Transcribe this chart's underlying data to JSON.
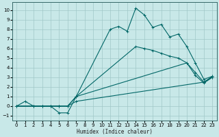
{
  "xlabel": "Humidex (Indice chaleur)",
  "xlim": [
    -0.5,
    23.5
  ],
  "ylim": [
    -1.5,
    10.8
  ],
  "xticks": [
    0,
    1,
    2,
    3,
    4,
    5,
    6,
    7,
    8,
    9,
    10,
    11,
    12,
    13,
    14,
    15,
    16,
    17,
    18,
    19,
    20,
    21,
    22,
    23
  ],
  "yticks": [
    -1,
    0,
    1,
    2,
    3,
    4,
    5,
    6,
    7,
    8,
    9,
    10
  ],
  "background_color": "#c8e8e8",
  "grid_color": "#a0c8c8",
  "line_color": "#006666",
  "line1_x": [
    0,
    1,
    2,
    3,
    4,
    5,
    6,
    7,
    11,
    12,
    13,
    14,
    15,
    16,
    17,
    18,
    19,
    20,
    21,
    22,
    23
  ],
  "line1_y": [
    0,
    0.5,
    0,
    0,
    0,
    -0.7,
    -0.7,
    1.0,
    8.0,
    8.3,
    7.8,
    10.2,
    9.5,
    8.2,
    8.5,
    7.2,
    7.5,
    6.2,
    4.5,
    2.8,
    3.1
  ],
  "line2_x": [
    0,
    2,
    3,
    4,
    5,
    6,
    7,
    14,
    15,
    16,
    17,
    18,
    19,
    20,
    21,
    22,
    23
  ],
  "line2_y": [
    0,
    0,
    0,
    0,
    0,
    0,
    1.0,
    6.2,
    6.0,
    5.8,
    5.5,
    5.2,
    5.0,
    4.5,
    3.5,
    2.5,
    3.1
  ],
  "line3_x": [
    0,
    2,
    3,
    4,
    5,
    6,
    7,
    20,
    21,
    22,
    23
  ],
  "line3_y": [
    0,
    0,
    0,
    0,
    0,
    0,
    1.0,
    4.5,
    3.2,
    2.4,
    3.0
  ],
  "line4_x": [
    0,
    2,
    3,
    4,
    5,
    6,
    7,
    22,
    23
  ],
  "line4_y": [
    0,
    0,
    0,
    0,
    0,
    0,
    0.5,
    2.5,
    3.0
  ]
}
